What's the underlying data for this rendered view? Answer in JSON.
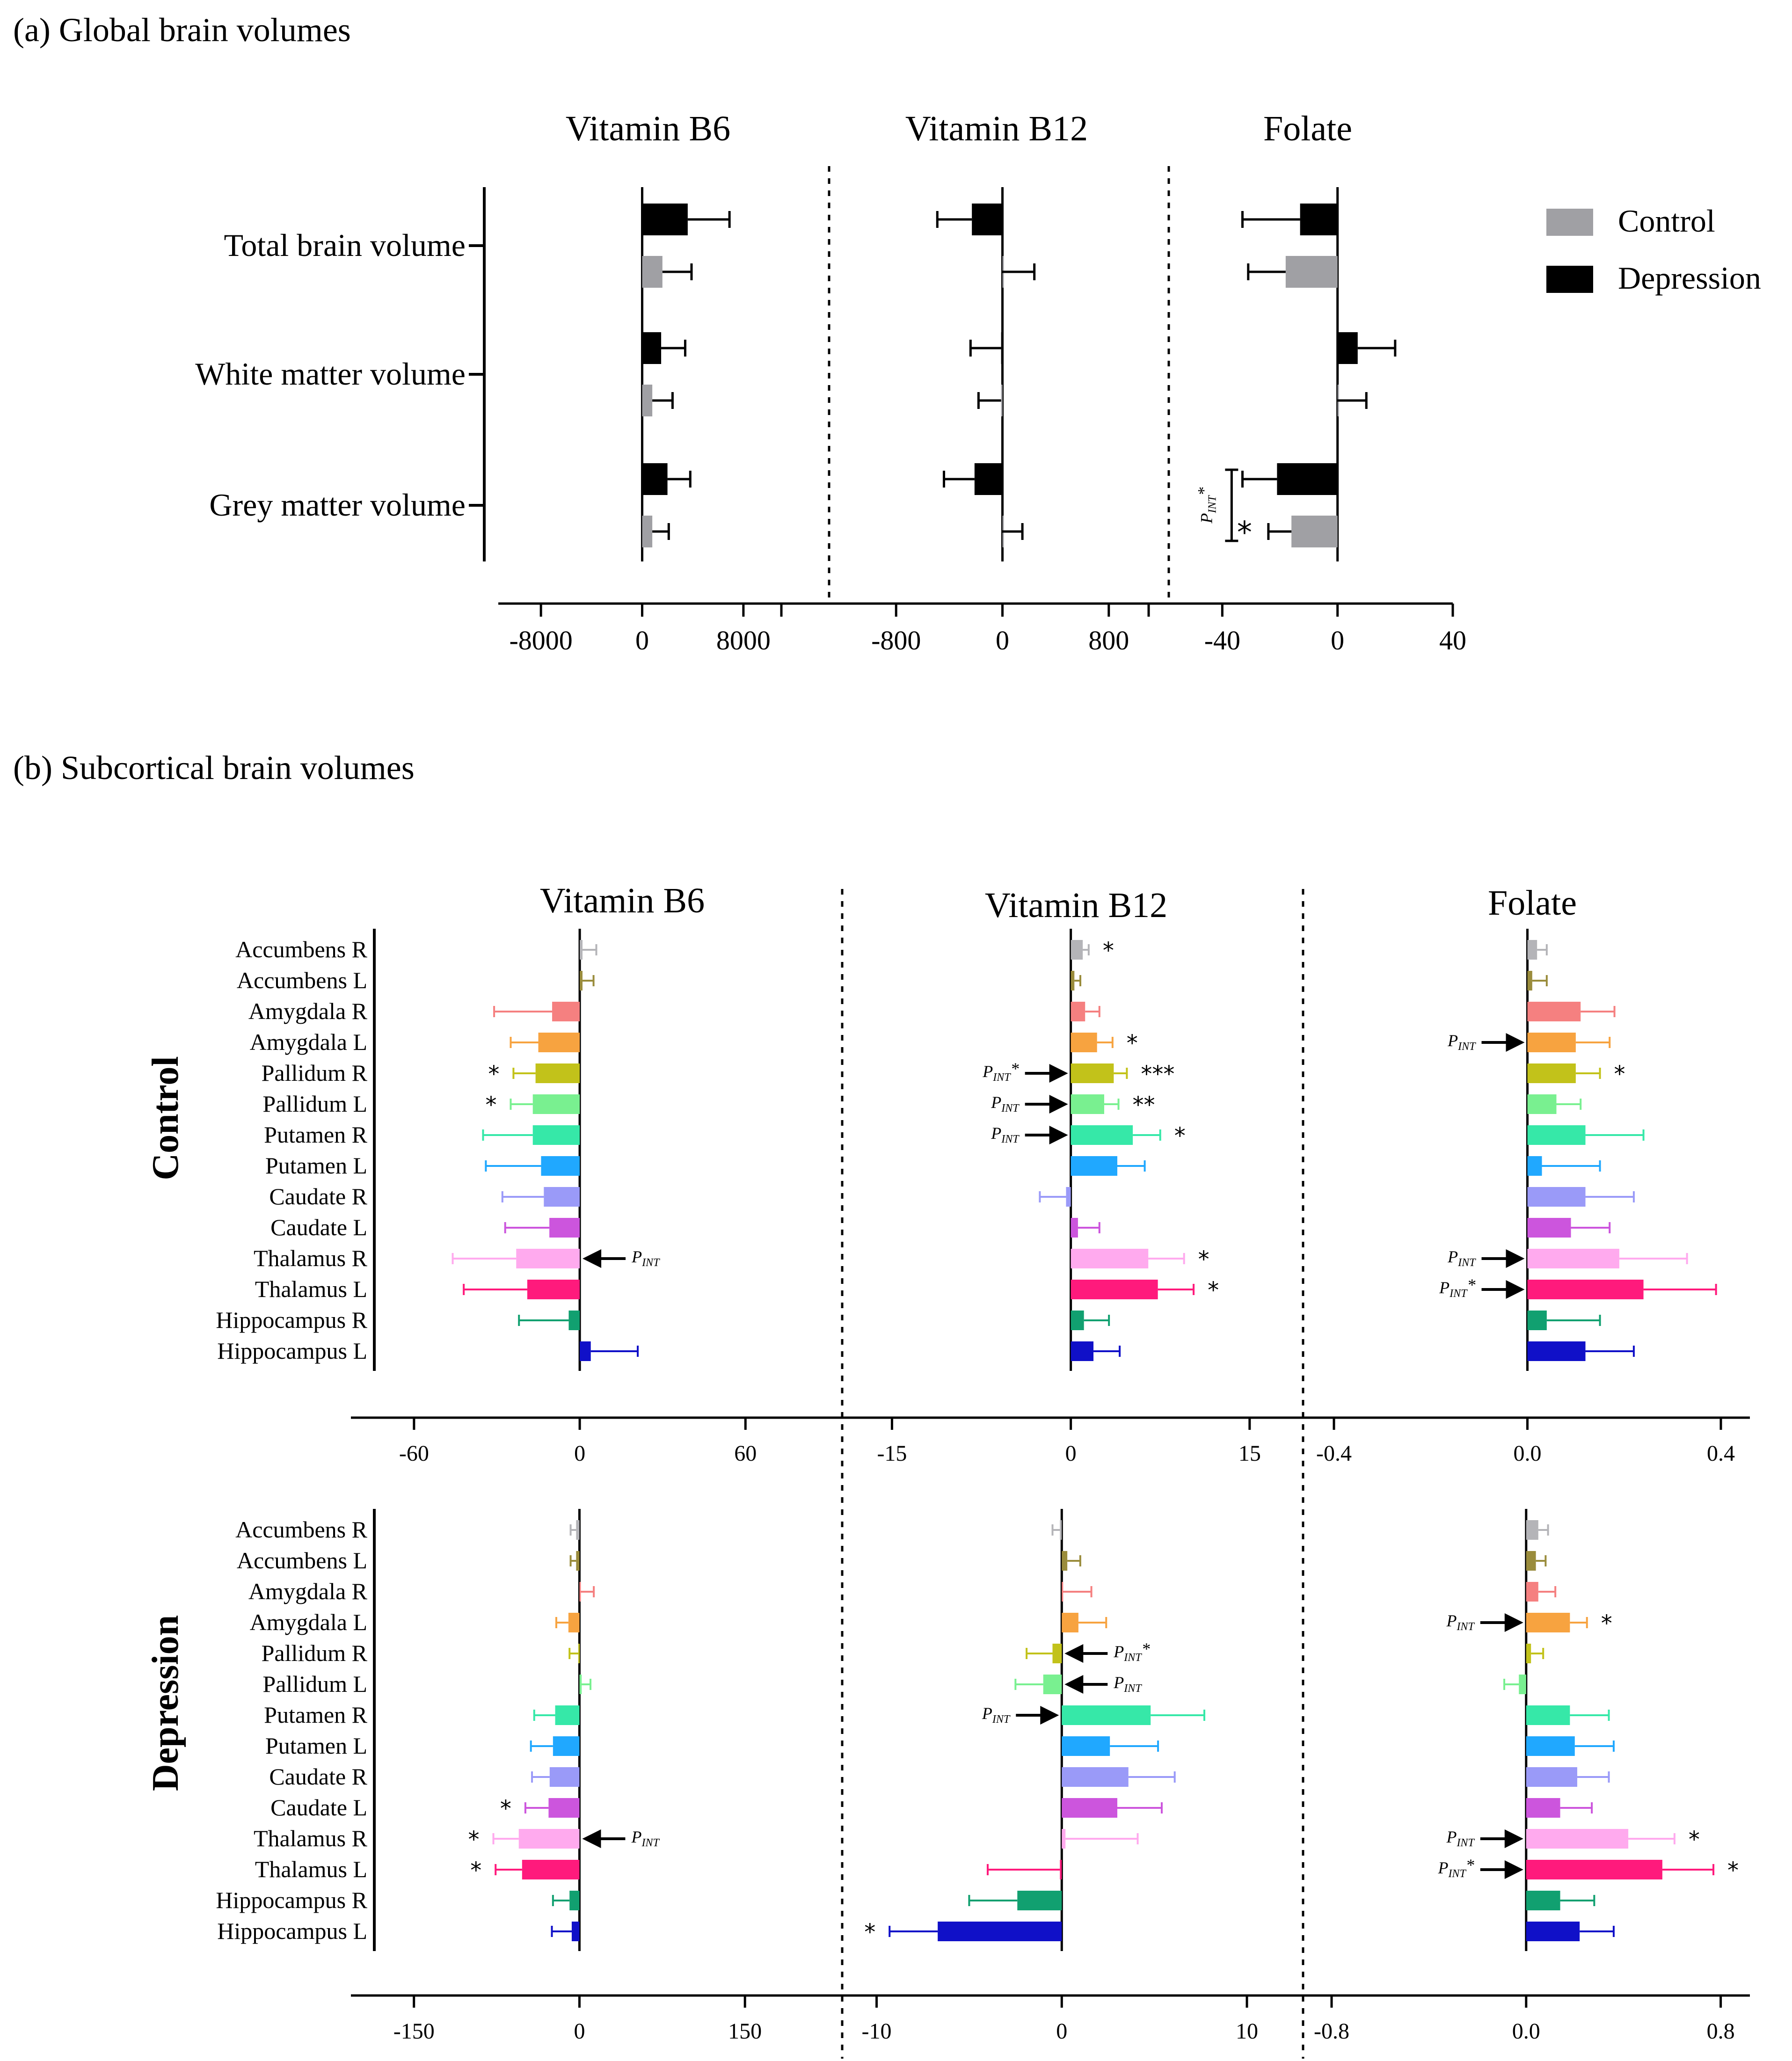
{
  "figure": {
    "section_a_title": "(a) Global brain volumes",
    "section_b_title": "(b) Subcortical brain volumes"
  },
  "legend": {
    "items": [
      {
        "label": "Control",
        "color": "#a0a0a4"
      },
      {
        "label": "Depression",
        "color": "#000000"
      }
    ]
  },
  "panel_titles": {
    "b6": "Vitamin B6",
    "b12": "Vitamin B12",
    "folate": "Folate"
  },
  "group_labels": {
    "control": "Control",
    "depression": "Depression"
  },
  "pint_text": "P",
  "pint_sub": "INT",
  "chart_data": [
    {
      "id": "global",
      "type": "bar",
      "orientation": "horizontal",
      "title": "(a) Global brain volumes",
      "categories": [
        "Total brain volume",
        "White matter volume",
        "Grey matter volume"
      ],
      "panels": [
        {
          "name": "Vitamin B6",
          "xlim": [
            -11000,
            11000
          ],
          "ticks": [
            -8000,
            0,
            8000
          ],
          "tick_labels": [
            "-8000",
            "0",
            "8000"
          ],
          "series": [
            {
              "name": "Depression",
              "color": "#000000",
              "values": [
                3600,
                1500,
                2000
              ],
              "errors": [
                3300,
                1900,
                1800
              ],
              "stars": [
                "",
                "",
                ""
              ]
            },
            {
              "name": "Control",
              "color": "#a0a0a4",
              "values": [
                1600,
                800,
                800
              ],
              "errors": [
                2300,
                1600,
                1300
              ],
              "stars": [
                "",
                "",
                ""
              ]
            }
          ]
        },
        {
          "name": "Vitamin B12",
          "xlim": [
            -1100,
            1100
          ],
          "ticks": [
            -800,
            0,
            800
          ],
          "tick_labels": [
            "-800",
            "0",
            "800"
          ],
          "series": [
            {
              "name": "Depression",
              "color": "#000000",
              "values": [
                -230,
                -10,
                -210
              ],
              "errors": [
                260,
                230,
                230
              ],
              "stars": [
                "",
                "",
                ""
              ]
            },
            {
              "name": "Control",
              "color": "#a0a0a4",
              "values": [
                0,
                -10,
                0
              ],
              "errors": [
                240,
                170,
                150
              ],
              "stars": [
                "",
                "",
                ""
              ]
            }
          ]
        },
        {
          "name": "Folate",
          "xlim": [
            -55,
            40
          ],
          "ticks": [
            -40,
            0,
            40
          ],
          "tick_labels": [
            "-40",
            "0",
            "40"
          ],
          "series": [
            {
              "name": "Depression",
              "color": "#000000",
              "values": [
                -13,
                7,
                -21
              ],
              "errors": [
                20,
                13,
                12
              ],
              "stars": [
                "",
                "",
                ""
              ]
            },
            {
              "name": "Control",
              "color": "#a0a0a4",
              "values": [
                -18,
                0,
                -16
              ],
              "errors": [
                13,
                10,
                8
              ],
              "stars": [
                "",
                "",
                "*"
              ]
            }
          ],
          "pint_bracket": {
            "category": "Grey matter volume",
            "label": "PINT*"
          }
        }
      ]
    },
    {
      "id": "subcortical",
      "type": "bar",
      "orientation": "horizontal",
      "title": "(b) Subcortical brain volumes",
      "categories": [
        "Accumbens R",
        "Accumbens L",
        "Amygdala R",
        "Amygdala L",
        "Pallidum R",
        "Pallidum L",
        "Putamen R",
        "Putamen L",
        "Caudate R",
        "Caudate L",
        "Thalamus R",
        "Thalamus L",
        "Hippocampus R",
        "Hippocampus L"
      ],
      "colors": [
        "#b4b4b8",
        "#9a8c3c",
        "#f58080",
        "#f7a340",
        "#c2c21a",
        "#79f090",
        "#36e8a8",
        "#20a8ff",
        "#9a9af8",
        "#cc55dd",
        "#ffaaee",
        "#ff1a7c",
        "#11a070",
        "#1010c8"
      ],
      "groups": [
        {
          "name": "Control",
          "panels": [
            {
              "name": "Vitamin B6",
              "xlim": [
                -82,
                73
              ],
              "ticks": [
                -60,
                0,
                60
              ],
              "tick_labels": [
                "-60",
                "0",
                "60"
              ],
              "values": [
                1,
                1,
                -10,
                -15,
                -16,
                -17,
                -17,
                -14,
                -13,
                -11,
                -23,
                -19,
                -4,
                4
              ],
              "errors": [
                5,
                4,
                21,
                10,
                8,
                8,
                18,
                20,
                15,
                16,
                23,
                23,
                18,
                17
              ],
              "stars": [
                "",
                "",
                "",
                "",
                "*",
                "*",
                "",
                "",
                "",
                "",
                "",
                "",
                "",
                ""
              ],
              "pint": [
                "",
                "",
                "",
                "",
                "",
                "",
                "",
                "",
                "",
                "",
                "PINT",
                "",
                "",
                ""
              ]
            },
            {
              "name": "Vitamin B12",
              "xlim": [
                -18,
                18.5
              ],
              "ticks": [
                -15,
                0,
                15
              ],
              "tick_labels": [
                "-15",
                "0",
                "15"
              ],
              "values": [
                1,
                0.3,
                1.2,
                2.2,
                3.6,
                2.8,
                5.2,
                3.9,
                -0.4,
                0.6,
                6.5,
                7.3,
                1.1,
                1.9
              ],
              "errors": [
                0.5,
                0.5,
                1.2,
                1.3,
                1.1,
                1.2,
                2.3,
                2.3,
                2.2,
                1.8,
                3.0,
                3.0,
                2.1,
                2.2
              ],
              "stars": [
                "*",
                "",
                "",
                "*",
                "***",
                "**",
                "*",
                "",
                "",
                "",
                "*",
                "*",
                "",
                ""
              ],
              "pint": [
                "",
                "",
                "",
                "",
                "PINT*",
                "PINT",
                "PINT",
                "",
                "",
                "",
                "",
                "",
                "",
                ""
              ]
            },
            {
              "name": "Folate",
              "xlim": [
                -0.43,
                0.46
              ],
              "ticks": [
                -0.4,
                0.0,
                0.4
              ],
              "tick_labels": [
                "-0.4",
                "0.0",
                "0.4"
              ],
              "values": [
                0.02,
                0.01,
                0.11,
                0.1,
                0.1,
                0.06,
                0.12,
                0.03,
                0.12,
                0.09,
                0.19,
                0.24,
                0.04,
                0.12
              ],
              "errors": [
                0.02,
                0.03,
                0.07,
                0.07,
                0.05,
                0.05,
                0.12,
                0.12,
                0.1,
                0.08,
                0.14,
                0.15,
                0.11,
                0.1
              ],
              "stars": [
                "",
                "",
                "",
                "",
                "*",
                "",
                "",
                "",
                "",
                "",
                "",
                "",
                "",
                ""
              ],
              "pint": [
                "",
                "",
                "",
                "PINT",
                "",
                "",
                "",
                "",
                "",
                "",
                "PINT",
                "PINT*",
                "",
                ""
              ]
            }
          ]
        },
        {
          "name": "Depression",
          "panels": [
            {
              "name": "Vitamin B6",
              "xlim": [
                -205,
                183
              ],
              "ticks": [
                -150,
                0,
                150
              ],
              "tick_labels": [
                "-150",
                "0",
                "150"
              ],
              "values": [
                -3,
                -3,
                1,
                -10,
                -1,
                2,
                -22,
                -24,
                -27,
                -28,
                -55,
                -52,
                -9,
                -7
              ],
              "errors": [
                5,
                5,
                12,
                11,
                8,
                8,
                19,
                20,
                16,
                21,
                23,
                24,
                15,
                18
              ],
              "stars": [
                "",
                "",
                "",
                "",
                "",
                "",
                "",
                "",
                "",
                "*",
                "*",
                "*",
                "",
                ""
              ],
              "pint": [
                "",
                "",
                "",
                "",
                "",
                "",
                "",
                "",
                "",
                "",
                "PINT",
                "",
                "",
                ""
              ]
            },
            {
              "name": "Vitamin B12",
              "xlim": [
                -11.1,
                12.4
              ],
              "ticks": [
                -10,
                0,
                10
              ],
              "tick_labels": [
                "-10",
                "0",
                "10"
              ],
              "values": [
                -0.1,
                0.3,
                0,
                0.9,
                -0.5,
                -1,
                4.8,
                2.6,
                3.6,
                3,
                0.2,
                -0.1,
                -2.4,
                -6.7
              ],
              "errors": [
                0.4,
                0.7,
                1.6,
                1.5,
                1.4,
                1.5,
                2.9,
                2.6,
                2.5,
                2.4,
                3.9,
                3.9,
                2.6,
                2.6
              ],
              "stars": [
                "",
                "",
                "",
                "",
                "",
                "",
                "",
                "",
                "",
                "",
                "",
                "",
                "",
                "*"
              ],
              "pint": [
                "",
                "",
                "",
                "",
                "PINT*",
                "PINT",
                "PINT",
                "",
                "",
                "",
                "",
                "",
                "",
                ""
              ]
            },
            {
              "name": "Folate",
              "xlim": [
                -0.85,
                0.92
              ],
              "ticks": [
                -0.8,
                0.0,
                0.8
              ],
              "tick_labels": [
                "-0.8",
                "0.0",
                "0.8"
              ],
              "values": [
                0.05,
                0.04,
                0.05,
                0.18,
                0.02,
                -0.03,
                0.18,
                0.2,
                0.21,
                0.14,
                0.42,
                0.56,
                0.14,
                0.22
              ],
              "errors": [
                0.04,
                0.04,
                0.07,
                0.07,
                0.05,
                0.06,
                0.16,
                0.16,
                0.13,
                0.13,
                0.19,
                0.21,
                0.14,
                0.14
              ],
              "stars": [
                "",
                "",
                "",
                "*",
                "",
                "",
                "",
                "",
                "",
                "",
                "*",
                "*",
                "",
                ""
              ],
              "pint": [
                "",
                "",
                "",
                "PINT",
                "",
                "",
                "",
                "",
                "",
                "",
                "PINT",
                "PINT*",
                "",
                ""
              ]
            }
          ]
        }
      ]
    }
  ]
}
